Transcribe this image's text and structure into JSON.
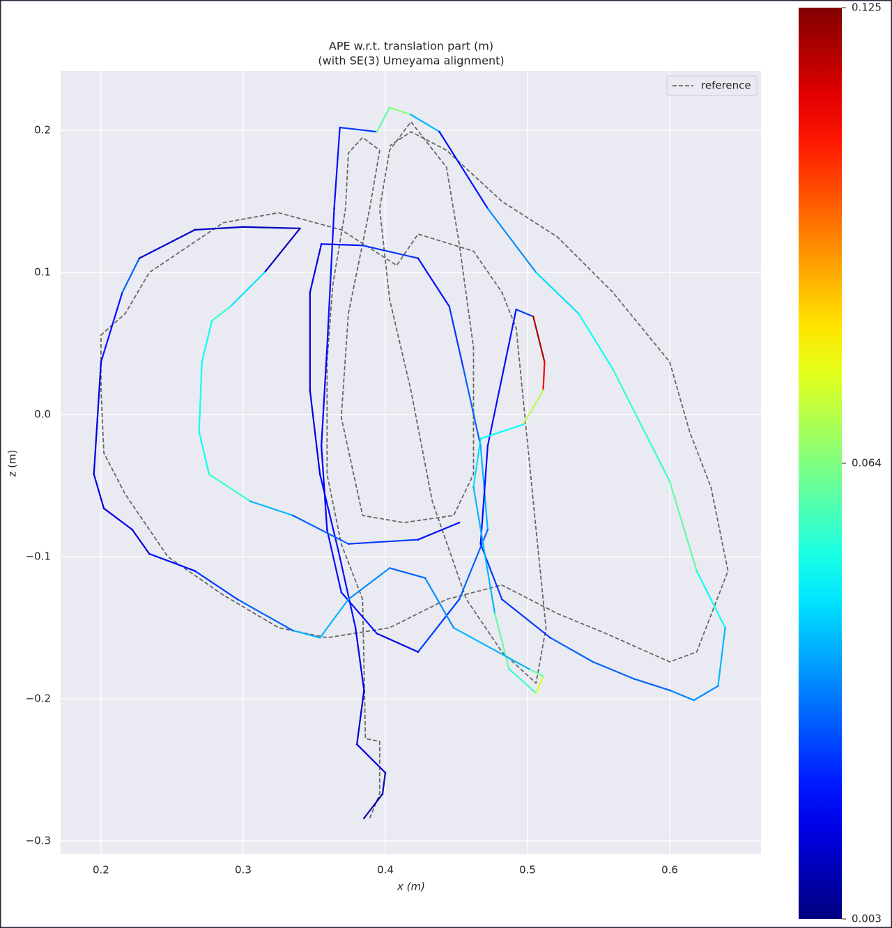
{
  "chart_data": {
    "type": "trajectory",
    "title": "APE w.r.t. translation part (m)",
    "subtitle": "(with SE(3) Umeyama alignment)",
    "x_label": "x (m)",
    "y_label": "z (m)",
    "xlim": [
      0.1716,
      0.6642
    ],
    "ylim": [
      -0.3093,
      0.2417
    ],
    "xticks": [
      0.2,
      0.3,
      0.4,
      0.5,
      0.6
    ],
    "yticks": [
      {
        "value": -0.3,
        "label": "−0.3"
      },
      {
        "value": -0.2,
        "label": "−0.2"
      },
      {
        "value": -0.1,
        "label": "−0.1"
      },
      {
        "value": 0.0,
        "label": "0.0"
      },
      0.1,
      0.2
    ],
    "grid": true,
    "legend": "upper right",
    "colorbar": {
      "cmap": "jet",
      "lim": [
        0.003,
        0.125
      ],
      "ticks": [
        0.003,
        0.064,
        0.125
      ]
    },
    "series": [
      {
        "name": "reference",
        "color": "#666666",
        "dashed": true,
        "x": [
          0.389,
          0.396,
          0.396,
          0.386,
          0.385,
          0.384,
          0.369,
          0.359,
          0.359,
          0.363,
          0.372,
          0.374,
          0.384,
          0.396,
          0.389,
          0.374,
          0.369,
          0.384,
          0.413,
          0.448,
          0.462,
          0.462,
          0.452,
          0.443,
          0.418,
          0.403,
          0.396,
          0.403,
          0.418,
          0.433,
          0.457,
          0.482,
          0.506,
          0.513,
          0.506,
          0.492,
          0.482,
          0.462,
          0.423,
          0.408,
          0.369,
          0.325,
          0.286,
          0.234,
          0.217,
          0.2,
          0.2,
          0.202,
          0.217,
          0.247,
          0.286,
          0.325,
          0.359,
          0.403,
          0.443,
          0.482,
          0.521,
          0.555,
          0.6,
          0.619,
          0.641,
          0.629,
          0.614,
          0.6,
          0.56,
          0.521,
          0.482,
          0.443,
          0.418,
          0.403
        ],
        "values": [
          -0.284,
          -0.267,
          -0.23,
          -0.228,
          -0.179,
          -0.13,
          -0.091,
          -0.042,
          0.037,
          0.091,
          0.145,
          0.184,
          0.195,
          0.186,
          0.145,
          0.071,
          -0.002,
          -0.071,
          -0.076,
          -0.071,
          -0.042,
          0.047,
          0.12,
          0.174,
          0.206,
          0.186,
          0.145,
          0.081,
          0.017,
          -0.061,
          -0.13,
          -0.167,
          -0.189,
          -0.15,
          -0.081,
          0.061,
          0.086,
          0.115,
          0.127,
          0.105,
          0.13,
          0.142,
          0.135,
          0.1,
          0.071,
          0.056,
          0.017,
          -0.027,
          -0.056,
          -0.1,
          -0.127,
          -0.15,
          -0.157,
          -0.15,
          -0.13,
          -0.12,
          -0.14,
          -0.154,
          -0.174,
          -0.167,
          -0.11,
          -0.051,
          -0.012,
          0.037,
          0.086,
          0.125,
          0.15,
          0.186,
          0.199,
          0.189
        ]
      },
      {
        "x": [
          0.385,
          0.398,
          0.4,
          0.38,
          0.385,
          0.379,
          0.367,
          0.354,
          0.347,
          0.347,
          0.355,
          0.384,
          0.423,
          0.445,
          0.455,
          0.467,
          0.472,
          0.452,
          0.423,
          0.394,
          0.369,
          0.359,
          0.355,
          0.359,
          0.364,
          0.368,
          0.394,
          0.403,
          0.418,
          0.438,
          0.472,
          0.506,
          0.536,
          0.56,
          0.6,
          0.619,
          0.639,
          0.634,
          0.617,
          0.6,
          0.575,
          0.546,
          0.516,
          0.482,
          0.467,
          0.472,
          0.492,
          0.504,
          0.512,
          0.511,
          0.497,
          0.467,
          0.462,
          0.477,
          0.487,
          0.506,
          0.511,
          0.501,
          0.448,
          0.428,
          0.403,
          0.374,
          0.354,
          0.335,
          0.296,
          0.266,
          0.234,
          0.222,
          0.202,
          0.195,
          0.2,
          0.215,
          0.227,
          0.266,
          0.3,
          0.34,
          0.315,
          0.291,
          0.278,
          0.271,
          0.269,
          0.276,
          0.305,
          0.335,
          0.374,
          0.423,
          0.452
        ],
        "values": [
          -0.284,
          -0.267,
          -0.252,
          -0.232,
          -0.194,
          -0.15,
          -0.096,
          -0.042,
          0.017,
          0.086,
          0.12,
          0.119,
          0.11,
          0.076,
          0.032,
          -0.022,
          -0.081,
          -0.13,
          -0.167,
          -0.154,
          -0.125,
          -0.081,
          -0.022,
          0.047,
          0.145,
          0.202,
          0.199,
          0.216,
          0.211,
          0.199,
          0.145,
          0.1,
          0.071,
          0.032,
          -0.047,
          -0.11,
          -0.15,
          -0.191,
          -0.201,
          -0.194,
          -0.186,
          -0.174,
          -0.157,
          -0.13,
          -0.091,
          -0.022,
          0.074,
          0.069,
          0.037,
          0.017,
          -0.007,
          -0.017,
          -0.051,
          -0.14,
          -0.179,
          -0.196,
          -0.184,
          -0.179,
          -0.15,
          -0.115,
          -0.108,
          -0.13,
          -0.157,
          -0.152,
          -0.13,
          -0.11,
          -0.098,
          -0.081,
          -0.066,
          -0.042,
          0.037,
          0.086,
          0.11,
          0.13,
          0.132,
          0.131,
          0.1,
          0.076,
          0.066,
          0.037,
          -0.012,
          -0.042,
          -0.061,
          -0.071,
          -0.091,
          -0.088,
          -0.076
        ],
        "error": [
          0.008,
          0.01,
          0.015,
          0.012,
          0.015,
          0.02,
          0.02,
          0.015,
          0.012,
          0.015,
          0.02,
          0.025,
          0.02,
          0.025,
          0.03,
          0.04,
          0.03,
          0.025,
          0.015,
          0.02,
          0.02,
          0.018,
          0.018,
          0.02,
          0.02,
          0.025,
          0.06,
          0.065,
          0.04,
          0.02,
          0.035,
          0.045,
          0.05,
          0.055,
          0.06,
          0.05,
          0.04,
          0.035,
          0.035,
          0.03,
          0.03,
          0.03,
          0.025,
          0.025,
          0.02,
          0.02,
          0.025,
          0.12,
          0.11,
          0.07,
          0.05,
          0.045,
          0.04,
          0.06,
          0.055,
          0.075,
          0.06,
          0.04,
          0.035,
          0.03,
          0.035,
          0.04,
          0.04,
          0.03,
          0.025,
          0.02,
          0.015,
          0.015,
          0.015,
          0.015,
          0.02,
          0.03,
          0.012,
          0.012,
          0.01,
          0.01,
          0.045,
          0.055,
          0.05,
          0.05,
          0.05,
          0.055,
          0.04,
          0.03,
          0.025,
          0.02,
          0.02
        ]
      }
    ]
  }
}
